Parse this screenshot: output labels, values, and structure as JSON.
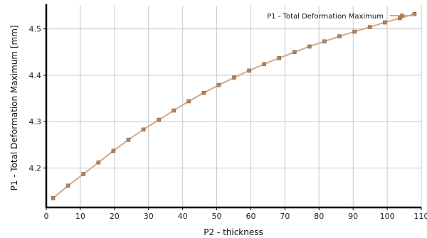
{
  "chart_data": {
    "type": "line",
    "xlabel": "P2 - thickness",
    "ylabel": "P1 - Total Deformation Maximum  [mm]",
    "xlim": [
      0,
      110
    ],
    "ylim": [
      4.115,
      4.55
    ],
    "x_ticks": [
      0,
      10,
      20,
      30,
      40,
      50,
      60,
      70,
      80,
      90,
      100,
      110
    ],
    "y_ticks": [
      4.2,
      4.3,
      4.4,
      4.5
    ],
    "grid": true,
    "legend_position": "top-right",
    "series": [
      {
        "name": "P1 - Total Deformation Maximum",
        "color": "#b5835a",
        "line_color": "#d4aa88",
        "x": [
          2,
          6.4,
          10.9,
          15.3,
          19.7,
          24.1,
          28.5,
          33,
          37.4,
          41.8,
          46.2,
          50.6,
          55.1,
          59.5,
          63.9,
          68.3,
          72.8,
          77.2,
          81.6,
          86,
          90.4,
          94.9,
          99.3,
          103.7,
          108
        ],
        "y": [
          4.135,
          4.162,
          4.187,
          4.212,
          4.237,
          4.261,
          4.283,
          4.304,
          4.324,
          4.344,
          4.362,
          4.379,
          4.395,
          4.41,
          4.424,
          4.437,
          4.45,
          4.462,
          4.473,
          4.484,
          4.494,
          4.504,
          4.514,
          4.523,
          4.532
        ]
      }
    ]
  }
}
